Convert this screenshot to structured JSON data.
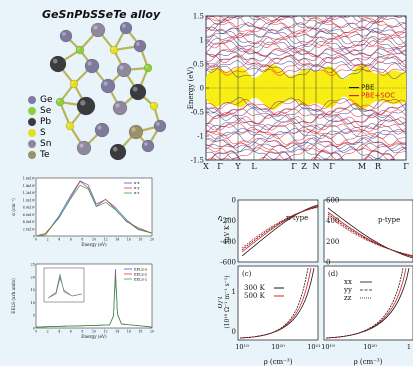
{
  "crystal": {
    "title": "GeSnPbSSeTe alloy",
    "legend": [
      {
        "label": "Ge",
        "color": "#7d7a9c"
      },
      {
        "label": "Se",
        "color": "#8fd03a"
      },
      {
        "label": "Pb",
        "color": "#3a3a3f"
      },
      {
        "label": "S",
        "color": "#e6df1f"
      },
      {
        "label": "Sn",
        "color": "#8f879e"
      },
      {
        "label": "Te",
        "color": "#9c9066"
      }
    ]
  },
  "bands": {
    "ylabel": "Energy (eV)",
    "yticks": [
      "1.5",
      "1",
      "0.5",
      "0",
      "-0.5",
      "-1",
      "-1.5"
    ],
    "kpoints": [
      "X",
      "Γ",
      "Y",
      "L",
      "Γ",
      "Z",
      "N",
      "Γ",
      "M",
      "R",
      "Γ"
    ],
    "legend": [
      {
        "label": "PBE",
        "color": "#1a1a1a"
      },
      {
        "label": "PBE+SOC",
        "color": "#e0202a"
      }
    ],
    "colors": {
      "gap": "#f8ee14",
      "soc": "#e0202a",
      "pbe": "#3b3f8f"
    }
  },
  "optics_top": {
    "ylabel": "α (cm⁻¹)",
    "xlabel": "Energy (eV)",
    "yticks": [
      "1.6x10⁶",
      "1.4x10⁶",
      "1.2x10⁶",
      "1.0x10⁶",
      "8.0x10⁵",
      "6.0x10⁵",
      "4.0x10⁵",
      "2.0x10⁵",
      "0"
    ],
    "xticks": [
      "0",
      "2",
      "4",
      "6",
      "8",
      "10",
      "12",
      "14",
      "16",
      "18",
      "20"
    ],
    "legend": [
      {
        "label": "α-x",
        "color": "#3a5bd6"
      },
      {
        "label": "α-y",
        "color": "#e23a3a"
      },
      {
        "label": "α-z",
        "color": "#2aa84a"
      }
    ]
  },
  "optics_bottom": {
    "ylabel": "EELS (arb.units)",
    "xlabel": "Energy (eV)",
    "yticks": [
      "25",
      "20",
      "15",
      "10",
      "5",
      "0"
    ],
    "xticks": [
      "0",
      "2",
      "4",
      "6",
      "8",
      "10",
      "12",
      "14",
      "16",
      "18",
      "20"
    ],
    "legend": [
      {
        "label": "EELS-x",
        "color": "#3a5bd6"
      },
      {
        "label": "EELS-y",
        "color": "#e23a3a"
      },
      {
        "label": "EELS-z",
        "color": "#2aa84a"
      }
    ]
  },
  "seebeck": {
    "ylabel": "S",
    "yunit": "(μV K⁻¹)",
    "left": {
      "label": "n-type",
      "yticks": [
        "0",
        "-200",
        "-400",
        "-600"
      ]
    },
    "right": {
      "label": "p-type",
      "yticks": [
        "600",
        "400",
        "200",
        "0"
      ]
    }
  },
  "sigma": {
    "ylabel": "σ/τ",
    "yunit": "(10¹⁹ Ω⁻¹ m⁻¹ s⁻¹)",
    "c": {
      "label": "(c)",
      "legend": [
        {
          "label": "300 K",
          "color": "#1a1a1a"
        },
        {
          "label": "500 K",
          "color": "#e0202a"
        }
      ],
      "yticks": [
        "1",
        "0"
      ]
    },
    "d": {
      "label": "(d)",
      "legend": [
        {
          "label": "xx"
        },
        {
          "label": "yy"
        },
        {
          "label": "zz"
        }
      ]
    },
    "xticks": [
      "10¹⁹",
      "10²⁰",
      "10²¹",
      "10¹⁹",
      "10²⁰",
      "1"
    ],
    "xlabel": "ρ (cm⁻³)"
  }
}
